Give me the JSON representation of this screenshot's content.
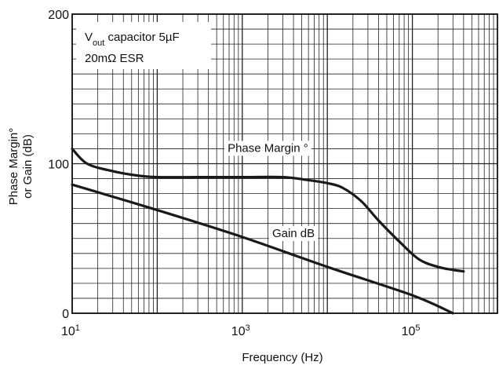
{
  "chart_data": {
    "type": "line",
    "title": "",
    "xlabel": "Frequency (Hz)",
    "ylabel_lines": [
      "Phase Margin°",
      "or Gain (dB)"
    ],
    "x_scale": "log",
    "xlim": [
      10,
      1000000
    ],
    "ylim": [
      0,
      200
    ],
    "grid": true,
    "x_ticks": [
      {
        "value": 10,
        "base": "10",
        "exp": "1"
      },
      {
        "value": 1000,
        "base": "10",
        "exp": "3"
      },
      {
        "value": 100000,
        "base": "10",
        "exp": "5"
      }
    ],
    "y_ticks": [
      {
        "value": 0,
        "label": "0"
      },
      {
        "value": 100,
        "label": "100"
      },
      {
        "value": 200,
        "label": "200"
      }
    ],
    "annotation_box": {
      "line1_main": "V",
      "line1_sub": "out",
      "line1_rest": " capacitor 5µF",
      "line2": "20mΩ ESR"
    },
    "series": [
      {
        "name": "Phase Margin °",
        "points": [
          [
            10,
            110
          ],
          [
            15,
            100
          ],
          [
            30,
            95
          ],
          [
            60,
            92
          ],
          [
            100,
            91
          ],
          [
            300,
            91
          ],
          [
            1000,
            91
          ],
          [
            3000,
            91
          ],
          [
            6000,
            89
          ],
          [
            10000,
            87
          ],
          [
            15000,
            84
          ],
          [
            25000,
            75
          ],
          [
            40000,
            62
          ],
          [
            70000,
            48
          ],
          [
            120000,
            36
          ],
          [
            200000,
            31
          ],
          [
            300000,
            29
          ],
          [
            400000,
            28
          ]
        ],
        "label_at": [
          2000,
          110
        ]
      },
      {
        "name": "Gain dB",
        "points": [
          [
            10,
            86
          ],
          [
            100,
            69
          ],
          [
            1000,
            51
          ],
          [
            10000,
            31
          ],
          [
            100000,
            12
          ],
          [
            300000,
            0
          ]
        ],
        "label_at": [
          4000,
          53
        ]
      }
    ],
    "colors": {
      "line": "#1a1a1a",
      "grid": "#222222",
      "background": "#ffffff"
    }
  }
}
